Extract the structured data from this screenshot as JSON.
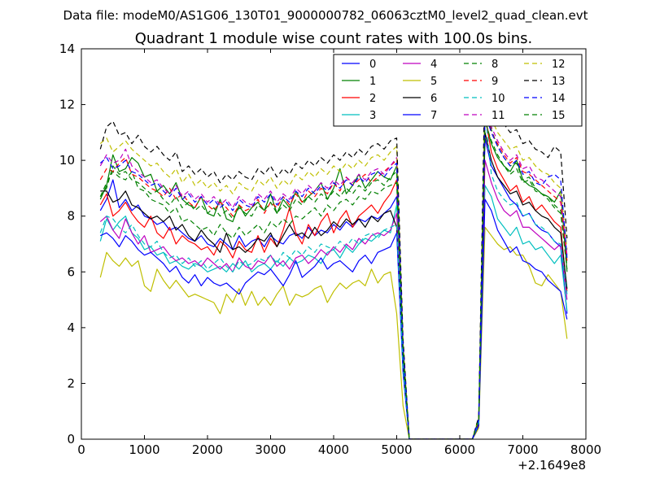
{
  "suptitle": "Data file: modeM0/AS1G06_130T01_9000000782_06063cztM0_level2_quad_clean.evt",
  "chart_data": {
    "type": "line",
    "title": "Quadrant 1 module wise count rates with 100.0s bins.",
    "xlabel": "",
    "ylabel": "",
    "x_offset_label": "+2.1649e8",
    "xlim": [
      0,
      8000
    ],
    "ylim": [
      0,
      14
    ],
    "xticks": [
      0,
      1000,
      2000,
      3000,
      4000,
      5000,
      6000,
      7000,
      8000
    ],
    "yticks": [
      0,
      2,
      4,
      6,
      8,
      10,
      12,
      14
    ],
    "grid": false,
    "legend_position": "top-right",
    "x": [
      300,
      400,
      500,
      600,
      700,
      800,
      900,
      1000,
      1100,
      1200,
      1300,
      1400,
      1500,
      1600,
      1700,
      1800,
      1900,
      2000,
      2100,
      2200,
      2300,
      2400,
      2500,
      2600,
      2700,
      2800,
      2900,
      3000,
      3100,
      3200,
      3300,
      3400,
      3500,
      3600,
      3700,
      3800,
      3900,
      4000,
      4100,
      4200,
      4300,
      4400,
      4500,
      4600,
      4700,
      4800,
      4900,
      5000,
      5100,
      5200,
      6200,
      6300,
      6400,
      6500,
      6600,
      6700,
      6800,
      6900,
      7000,
      7100,
      7200,
      7300,
      7400,
      7500,
      7600,
      7700
    ],
    "series": [
      {
        "name": "0",
        "color": "#0000ff",
        "dash": "solid",
        "values": [
          8.2,
          8.6,
          9.3,
          8.3,
          8.6,
          8.2,
          8.4,
          8.0,
          7.9,
          7.7,
          7.8,
          7.5,
          7.6,
          7.4,
          7.2,
          7.1,
          7.3,
          7.0,
          6.9,
          7.2,
          7.0,
          6.8,
          7.3,
          6.9,
          7.1,
          7.2,
          6.9,
          7.3,
          7.1,
          7.0,
          7.3,
          7.4,
          7.2,
          7.6,
          7.3,
          7.5,
          7.4,
          7.7,
          7.5,
          7.8,
          7.6,
          7.9,
          7.8,
          8.0,
          7.9,
          8.1,
          8.3,
          8.7,
          3.0,
          0.0,
          0.0,
          0.6,
          10.8,
          9.8,
          9.4,
          9.0,
          8.6,
          8.4,
          8.0,
          8.1,
          7.7,
          7.5,
          7.4,
          7.1,
          6.9,
          4.5
        ]
      },
      {
        "name": "1",
        "color": "#008000",
        "dash": "solid",
        "values": [
          8.6,
          9.1,
          10.2,
          9.6,
          9.7,
          10.1,
          9.9,
          9.4,
          9.5,
          8.9,
          9.1,
          8.8,
          9.2,
          8.6,
          8.4,
          8.3,
          8.7,
          8.1,
          8.0,
          8.6,
          7.9,
          7.8,
          8.4,
          8.0,
          8.3,
          8.5,
          8.2,
          8.8,
          8.1,
          8.6,
          8.3,
          8.9,
          8.5,
          8.7,
          8.9,
          9.2,
          8.6,
          9.0,
          9.7,
          8.8,
          9.1,
          9.5,
          9.0,
          9.3,
          9.6,
          9.4,
          9.3,
          9.8,
          3.1,
          0.0,
          0.0,
          0.7,
          11.5,
          10.6,
          10.1,
          9.8,
          9.6,
          10.0,
          9.3,
          9.1,
          9.0,
          8.8,
          8.7,
          8.5,
          8.9,
          6.0
        ]
      },
      {
        "name": "2",
        "color": "#ff0000",
        "dash": "solid",
        "values": [
          8.4,
          8.8,
          8.0,
          8.2,
          8.5,
          8.1,
          7.8,
          7.6,
          8.0,
          7.4,
          7.2,
          7.6,
          7.0,
          7.3,
          7.1,
          7.0,
          6.8,
          6.9,
          6.6,
          7.1,
          6.9,
          6.5,
          7.1,
          6.8,
          6.7,
          7.3,
          6.7,
          7.2,
          6.9,
          7.5,
          8.3,
          7.4,
          7.0,
          7.7,
          7.3,
          7.8,
          8.1,
          7.4,
          7.9,
          8.2,
          7.6,
          8.0,
          8.2,
          8.4,
          8.1,
          8.5,
          8.8,
          9.3,
          3.0,
          0.0,
          0.0,
          0.6,
          11.6,
          10.3,
          9.7,
          9.3,
          8.9,
          9.1,
          8.5,
          8.7,
          8.2,
          8.4,
          8.1,
          7.8,
          7.6,
          5.3
        ]
      },
      {
        "name": "3",
        "color": "#00bfbf",
        "dash": "solid",
        "values": [
          7.1,
          7.9,
          7.5,
          7.8,
          8.0,
          7.4,
          7.2,
          6.8,
          6.9,
          6.6,
          6.7,
          6.3,
          6.4,
          6.2,
          6.1,
          6.3,
          6.2,
          6.0,
          6.1,
          6.2,
          6.0,
          6.3,
          6.1,
          6.4,
          6.0,
          6.2,
          6.3,
          6.1,
          6.4,
          6.2,
          6.5,
          6.3,
          6.4,
          6.6,
          6.5,
          6.3,
          6.7,
          6.8,
          6.5,
          6.9,
          6.7,
          7.0,
          7.2,
          7.1,
          7.3,
          7.5,
          7.4,
          8.4,
          2.6,
          0.0,
          0.0,
          0.5,
          9.1,
          8.7,
          7.9,
          7.6,
          7.3,
          7.6,
          7.0,
          7.1,
          6.8,
          6.9,
          6.6,
          6.3,
          6.6,
          4.6
        ]
      },
      {
        "name": "4",
        "color": "#bf00bf",
        "dash": "solid",
        "values": [
          7.8,
          8.0,
          7.5,
          7.2,
          7.9,
          7.4,
          7.0,
          7.3,
          6.7,
          6.8,
          6.9,
          6.6,
          6.4,
          6.5,
          6.3,
          6.4,
          6.2,
          6.5,
          6.3,
          6.1,
          6.3,
          6.0,
          6.5,
          6.2,
          6.1,
          6.4,
          6.3,
          6.6,
          6.2,
          6.4,
          6.1,
          6.5,
          6.6,
          6.3,
          6.5,
          6.8,
          6.6,
          6.9,
          6.7,
          7.0,
          6.8,
          7.2,
          7.0,
          7.3,
          7.4,
          7.3,
          7.5,
          8.1,
          2.6,
          0.0,
          0.0,
          0.5,
          10.0,
          9.2,
          8.6,
          8.2,
          8.0,
          8.2,
          7.6,
          7.6,
          7.4,
          7.2,
          7.0,
          6.8,
          7.0,
          5.0
        ]
      },
      {
        "name": "5",
        "color": "#bfbf00",
        "dash": "solid",
        "values": [
          5.8,
          6.7,
          6.4,
          6.2,
          6.5,
          6.2,
          6.4,
          5.5,
          5.3,
          6.1,
          5.7,
          5.4,
          5.7,
          5.4,
          5.1,
          5.2,
          5.1,
          5.0,
          4.9,
          4.5,
          5.2,
          4.9,
          5.4,
          4.8,
          5.3,
          4.8,
          5.1,
          4.8,
          5.2,
          5.5,
          4.8,
          5.2,
          5.1,
          5.2,
          5.4,
          5.5,
          4.9,
          5.3,
          5.6,
          5.4,
          5.6,
          5.7,
          5.5,
          6.1,
          5.6,
          5.9,
          6.0,
          4.5,
          1.2,
          0.0,
          0.0,
          0.4,
          7.6,
          7.3,
          7.0,
          6.8,
          6.9,
          6.6,
          6.6,
          6.2,
          5.6,
          5.5,
          5.9,
          5.6,
          5.3,
          3.6
        ]
      },
      {
        "name": "6",
        "color": "#000000",
        "dash": "solid",
        "values": [
          8.9,
          8.9,
          8.5,
          8.6,
          8.9,
          8.4,
          8.3,
          8.1,
          7.9,
          8.0,
          7.8,
          8.0,
          7.5,
          7.7,
          7.3,
          7.1,
          7.5,
          7.2,
          7.0,
          6.7,
          7.4,
          6.8,
          6.9,
          6.7,
          6.9,
          7.2,
          7.1,
          7.4,
          6.9,
          7.3,
          7.7,
          7.3,
          7.4,
          7.2,
          7.6,
          7.3,
          7.5,
          7.8,
          7.6,
          7.9,
          7.7,
          7.9,
          7.6,
          8.0,
          7.8,
          8.1,
          8.2,
          7.6,
          2.7,
          0.0,
          0.0,
          0.5,
          11.0,
          10.0,
          9.4,
          9.1,
          8.8,
          8.9,
          8.4,
          8.5,
          8.2,
          8.0,
          7.9,
          7.6,
          7.4,
          5.4
        ]
      },
      {
        "name": "7",
        "color": "#0000ff",
        "dash": "solid",
        "values": [
          7.3,
          7.4,
          7.2,
          6.9,
          7.3,
          7.1,
          6.8,
          6.6,
          6.7,
          6.5,
          6.3,
          6.0,
          6.2,
          5.8,
          5.6,
          5.9,
          5.5,
          5.8,
          5.6,
          5.5,
          5.6,
          5.4,
          5.2,
          5.6,
          5.8,
          6.0,
          5.9,
          6.1,
          5.8,
          5.5,
          5.9,
          6.4,
          5.8,
          6.0,
          6.2,
          6.5,
          6.1,
          6.3,
          6.4,
          6.2,
          6.0,
          6.4,
          6.6,
          6.3,
          6.7,
          6.8,
          6.9,
          7.4,
          2.4,
          0.0,
          0.0,
          0.5,
          8.6,
          8.2,
          7.5,
          7.1,
          6.7,
          6.9,
          6.4,
          6.3,
          6.1,
          6.0,
          5.7,
          5.5,
          5.3,
          4.3
        ]
      },
      {
        "name": "8",
        "color": "#008000",
        "dash": "dashed",
        "values": [
          8.7,
          9.2,
          9.6,
          9.4,
          9.3,
          9.6,
          9.0,
          8.9,
          8.6,
          8.5,
          8.4,
          8.1,
          8.3,
          7.8,
          7.9,
          7.7,
          7.5,
          7.6,
          7.3,
          7.7,
          7.4,
          7.2,
          7.6,
          7.3,
          7.5,
          7.7,
          7.4,
          7.8,
          7.6,
          7.9,
          7.7,
          8.0,
          7.9,
          8.1,
          8.3,
          8.0,
          8.4,
          8.2,
          8.5,
          8.6,
          8.4,
          8.7,
          8.6,
          8.9,
          8.8,
          9.0,
          9.1,
          9.2,
          3.1,
          0.0,
          0.0,
          0.7,
          12.2,
          11.1,
          10.5,
          10.1,
          9.8,
          9.9,
          9.3,
          9.4,
          9.0,
          8.8,
          8.7,
          8.4,
          8.2,
          6.2
        ]
      },
      {
        "name": "9",
        "color": "#ff0000",
        "dash": "dashed",
        "values": [
          9.3,
          9.7,
          9.6,
          9.9,
          10.1,
          9.5,
          9.4,
          9.2,
          9.0,
          8.9,
          8.7,
          9.0,
          8.6,
          8.8,
          8.5,
          8.3,
          8.7,
          8.4,
          8.2,
          8.5,
          8.3,
          8.0,
          8.4,
          8.2,
          8.3,
          8.6,
          8.1,
          8.5,
          8.3,
          8.7,
          8.4,
          8.8,
          8.5,
          8.9,
          8.7,
          9.0,
          8.8,
          9.2,
          8.9,
          9.4,
          9.1,
          9.3,
          9.5,
          9.2,
          9.4,
          9.6,
          9.8,
          10.0,
          3.3,
          0.0,
          0.0,
          0.7,
          12.0,
          11.0,
          10.6,
          10.2,
          9.9,
          10.1,
          9.6,
          9.5,
          9.3,
          9.1,
          8.9,
          8.7,
          8.5,
          6.4
        ]
      },
      {
        "name": "10",
        "color": "#00bfbf",
        "dash": "dashed",
        "values": [
          7.4,
          8.0,
          7.9,
          7.6,
          7.4,
          7.7,
          7.3,
          7.0,
          6.9,
          7.1,
          6.7,
          6.5,
          6.6,
          6.3,
          6.5,
          6.2,
          6.4,
          6.1,
          6.3,
          6.5,
          6.2,
          6.0,
          6.4,
          6.2,
          6.3,
          6.5,
          6.4,
          6.6,
          6.3,
          6.7,
          6.5,
          6.8,
          6.6,
          6.9,
          6.7,
          7.0,
          6.9,
          6.8,
          7.1,
          6.9,
          7.2,
          7.0,
          7.3,
          7.4,
          7.2,
          7.5,
          7.6,
          7.7,
          2.6,
          0.0,
          0.0,
          0.6,
          11.8,
          9.5,
          8.9,
          8.6,
          8.4,
          8.5,
          8.0,
          8.1,
          7.7,
          7.6,
          7.4,
          7.1,
          7.0,
          5.2
        ]
      },
      {
        "name": "11",
        "color": "#bf00bf",
        "dash": "dashed",
        "values": [
          9.8,
          10.2,
          9.9,
          10.0,
          10.4,
          9.8,
          9.6,
          9.4,
          9.2,
          9.3,
          9.0,
          8.8,
          9.1,
          8.7,
          8.9,
          8.6,
          8.8,
          8.5,
          8.7,
          8.4,
          8.6,
          8.3,
          8.7,
          8.5,
          8.4,
          8.8,
          8.6,
          8.9,
          8.5,
          8.8,
          8.6,
          9.0,
          8.8,
          9.1,
          8.9,
          9.2,
          9.0,
          9.3,
          9.1,
          9.4,
          9.2,
          9.5,
          9.3,
          9.6,
          9.7,
          9.5,
          9.8,
          10.1,
          3.4,
          0.0,
          0.0,
          0.7,
          11.8,
          11.2,
          10.7,
          10.3,
          10.0,
          10.2,
          9.7,
          9.8,
          9.4,
          9.3,
          9.1,
          8.9,
          8.7,
          6.6
        ]
      },
      {
        "name": "12",
        "color": "#bfbf00",
        "dash": "dashed",
        "values": [
          10.6,
          10.8,
          10.3,
          10.5,
          10.7,
          10.4,
          10.2,
          10.0,
          9.8,
          9.9,
          9.6,
          9.4,
          9.7,
          9.2,
          9.5,
          9.1,
          9.3,
          9.0,
          9.2,
          8.9,
          9.1,
          8.8,
          9.2,
          9.0,
          8.9,
          9.3,
          9.1,
          9.4,
          9.0,
          9.3,
          9.1,
          9.5,
          9.3,
          9.6,
          9.4,
          9.7,
          9.5,
          9.8,
          9.6,
          9.9,
          9.7,
          10.0,
          9.8,
          10.1,
          10.2,
          10.0,
          10.3,
          10.5,
          3.5,
          0.0,
          0.0,
          0.8,
          12.4,
          11.5,
          11.0,
          10.7,
          10.4,
          10.5,
          10.0,
          10.1,
          9.8,
          9.6,
          9.5,
          9.2,
          9.0,
          6.8
        ]
      },
      {
        "name": "13",
        "color": "#000000",
        "dash": "dashed",
        "values": [
          10.4,
          11.2,
          11.4,
          10.9,
          11.0,
          10.6,
          10.9,
          10.5,
          10.3,
          10.5,
          10.2,
          10.0,
          10.3,
          9.6,
          9.8,
          9.5,
          9.7,
          9.4,
          9.6,
          9.2,
          9.5,
          9.3,
          9.6,
          9.4,
          9.3,
          9.7,
          9.5,
          9.8,
          9.4,
          9.7,
          9.5,
          9.9,
          9.7,
          10.0,
          9.8,
          10.1,
          9.9,
          10.2,
          10.0,
          10.3,
          10.1,
          10.4,
          10.2,
          10.5,
          10.6,
          10.4,
          10.7,
          10.8,
          3.6,
          0.0,
          0.0,
          0.8,
          13.3,
          12.4,
          11.7,
          11.3,
          11.0,
          11.1,
          10.6,
          10.7,
          10.4,
          10.3,
          10.1,
          10.5,
          10.3,
          7.2
        ]
      },
      {
        "name": "14",
        "color": "#0000ff",
        "dash": "dashed",
        "values": [
          9.9,
          10.1,
          9.7,
          9.8,
          10.0,
          9.6,
          9.5,
          9.3,
          9.1,
          9.2,
          8.9,
          8.7,
          9.0,
          8.6,
          8.8,
          8.5,
          8.7,
          8.4,
          8.6,
          8.3,
          8.5,
          8.2,
          8.6,
          8.4,
          8.3,
          8.7,
          8.5,
          8.8,
          8.4,
          8.7,
          8.5,
          8.9,
          8.7,
          9.0,
          8.8,
          9.1,
          8.9,
          9.2,
          9.0,
          9.3,
          9.1,
          9.4,
          9.2,
          9.5,
          9.6,
          9.4,
          9.7,
          9.9,
          3.3,
          0.0,
          0.0,
          0.7,
          11.7,
          11.0,
          10.5,
          10.1,
          9.8,
          10.0,
          9.5,
          9.6,
          9.2,
          9.1,
          9.4,
          9.5,
          9.3,
          6.5
        ]
      },
      {
        "name": "15",
        "color": "#008000",
        "dash": "dashed",
        "values": [
          8.7,
          9.0,
          9.8,
          9.5,
          9.6,
          9.3,
          9.2,
          9.0,
          8.8,
          8.9,
          8.6,
          8.4,
          8.7,
          8.3,
          8.5,
          8.2,
          8.4,
          8.1,
          8.3,
          8.0,
          8.2,
          7.9,
          8.3,
          8.1,
          8.0,
          8.4,
          8.2,
          8.5,
          8.1,
          8.4,
          8.2,
          8.6,
          8.4,
          8.7,
          8.5,
          8.8,
          8.6,
          8.9,
          8.7,
          9.0,
          8.8,
          9.1,
          8.9,
          9.2,
          9.3,
          9.1,
          9.4,
          9.6,
          3.2,
          0.0,
          0.0,
          0.7,
          11.4,
          10.7,
          10.2,
          9.8,
          9.5,
          9.7,
          9.2,
          9.3,
          8.9,
          8.8,
          8.6,
          8.3,
          8.1,
          6.1
        ]
      }
    ]
  }
}
